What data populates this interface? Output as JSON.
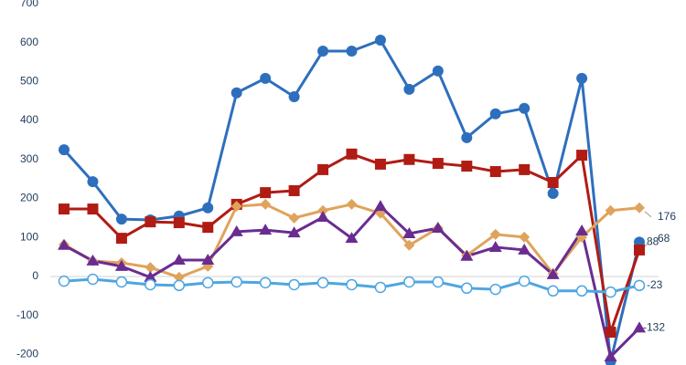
{
  "chart_data": {
    "type": "line",
    "categories": [
      null,
      null,
      null,
      null,
      null,
      null,
      null,
      null,
      null,
      null,
      null,
      null,
      null,
      null,
      null,
      null,
      null,
      null,
      null,
      null,
      null
    ],
    "ylim": [
      -227,
      709
    ],
    "yticks": [
      -200,
      -100,
      0,
      100,
      200,
      300,
      400,
      500,
      600,
      700
    ],
    "series": [
      {
        "color": "#2e6fbd",
        "marker": "circle",
        "values": [
          325,
          243,
          147,
          145,
          155,
          176,
          471,
          508,
          461,
          578,
          578,
          606,
          480,
          527,
          356,
          417,
          431,
          213,
          508,
          -218,
          88
        ],
        "value_labels": [
          null,
          null,
          null,
          null,
          null,
          null,
          null,
          null,
          null,
          null,
          null,
          null,
          null,
          null,
          null,
          null,
          null,
          null,
          null,
          null,
          "88"
        ]
      },
      {
        "color": "#b01c14",
        "marker": "square",
        "values": [
          173,
          173,
          98,
          140,
          138,
          126,
          185,
          215,
          220,
          274,
          314,
          288,
          300,
          290,
          283,
          269,
          274,
          241,
          311,
          -143,
          68
        ],
        "value_labels": [
          null,
          null,
          null,
          null,
          null,
          null,
          null,
          null,
          null,
          null,
          null,
          null,
          null,
          null,
          null,
          null,
          null,
          null,
          null,
          null,
          "68"
        ]
      },
      {
        "color": "#e0a35c",
        "marker": "diamond",
        "values": [
          82,
          40,
          35,
          23,
          -2,
          26,
          180,
          185,
          150,
          169,
          185,
          162,
          80,
          124,
          54,
          108,
          101,
          7,
          101,
          169,
          176
        ],
        "value_labels": [
          null,
          null,
          null,
          null,
          null,
          null,
          null,
          null,
          null,
          null,
          null,
          null,
          null,
          null,
          null,
          null,
          null,
          null,
          null,
          null,
          "176"
        ]
      },
      {
        "color": "#6a2c91",
        "marker": "triangle",
        "values": [
          80,
          40,
          26,
          -2,
          42,
          42,
          115,
          119,
          112,
          152,
          98,
          180,
          110,
          124,
          52,
          75,
          68,
          5,
          117,
          -206,
          -132
        ],
        "value_labels": [
          null,
          null,
          null,
          null,
          null,
          null,
          null,
          null,
          null,
          null,
          null,
          null,
          null,
          null,
          null,
          null,
          null,
          null,
          null,
          null,
          "-132"
        ]
      },
      {
        "color": "#4da6e0",
        "marker": "open-circle",
        "values": [
          -12,
          -7,
          -14,
          -21,
          -23,
          -16,
          -14,
          -16,
          -21,
          -16,
          -21,
          -28,
          -14,
          -14,
          -30,
          -33,
          -12,
          -37,
          -37,
          -40,
          -23
        ],
        "value_labels": [
          null,
          null,
          null,
          null,
          null,
          null,
          null,
          null,
          null,
          null,
          null,
          null,
          null,
          null,
          null,
          null,
          null,
          null,
          null,
          null,
          "-23"
        ]
      }
    ]
  }
}
